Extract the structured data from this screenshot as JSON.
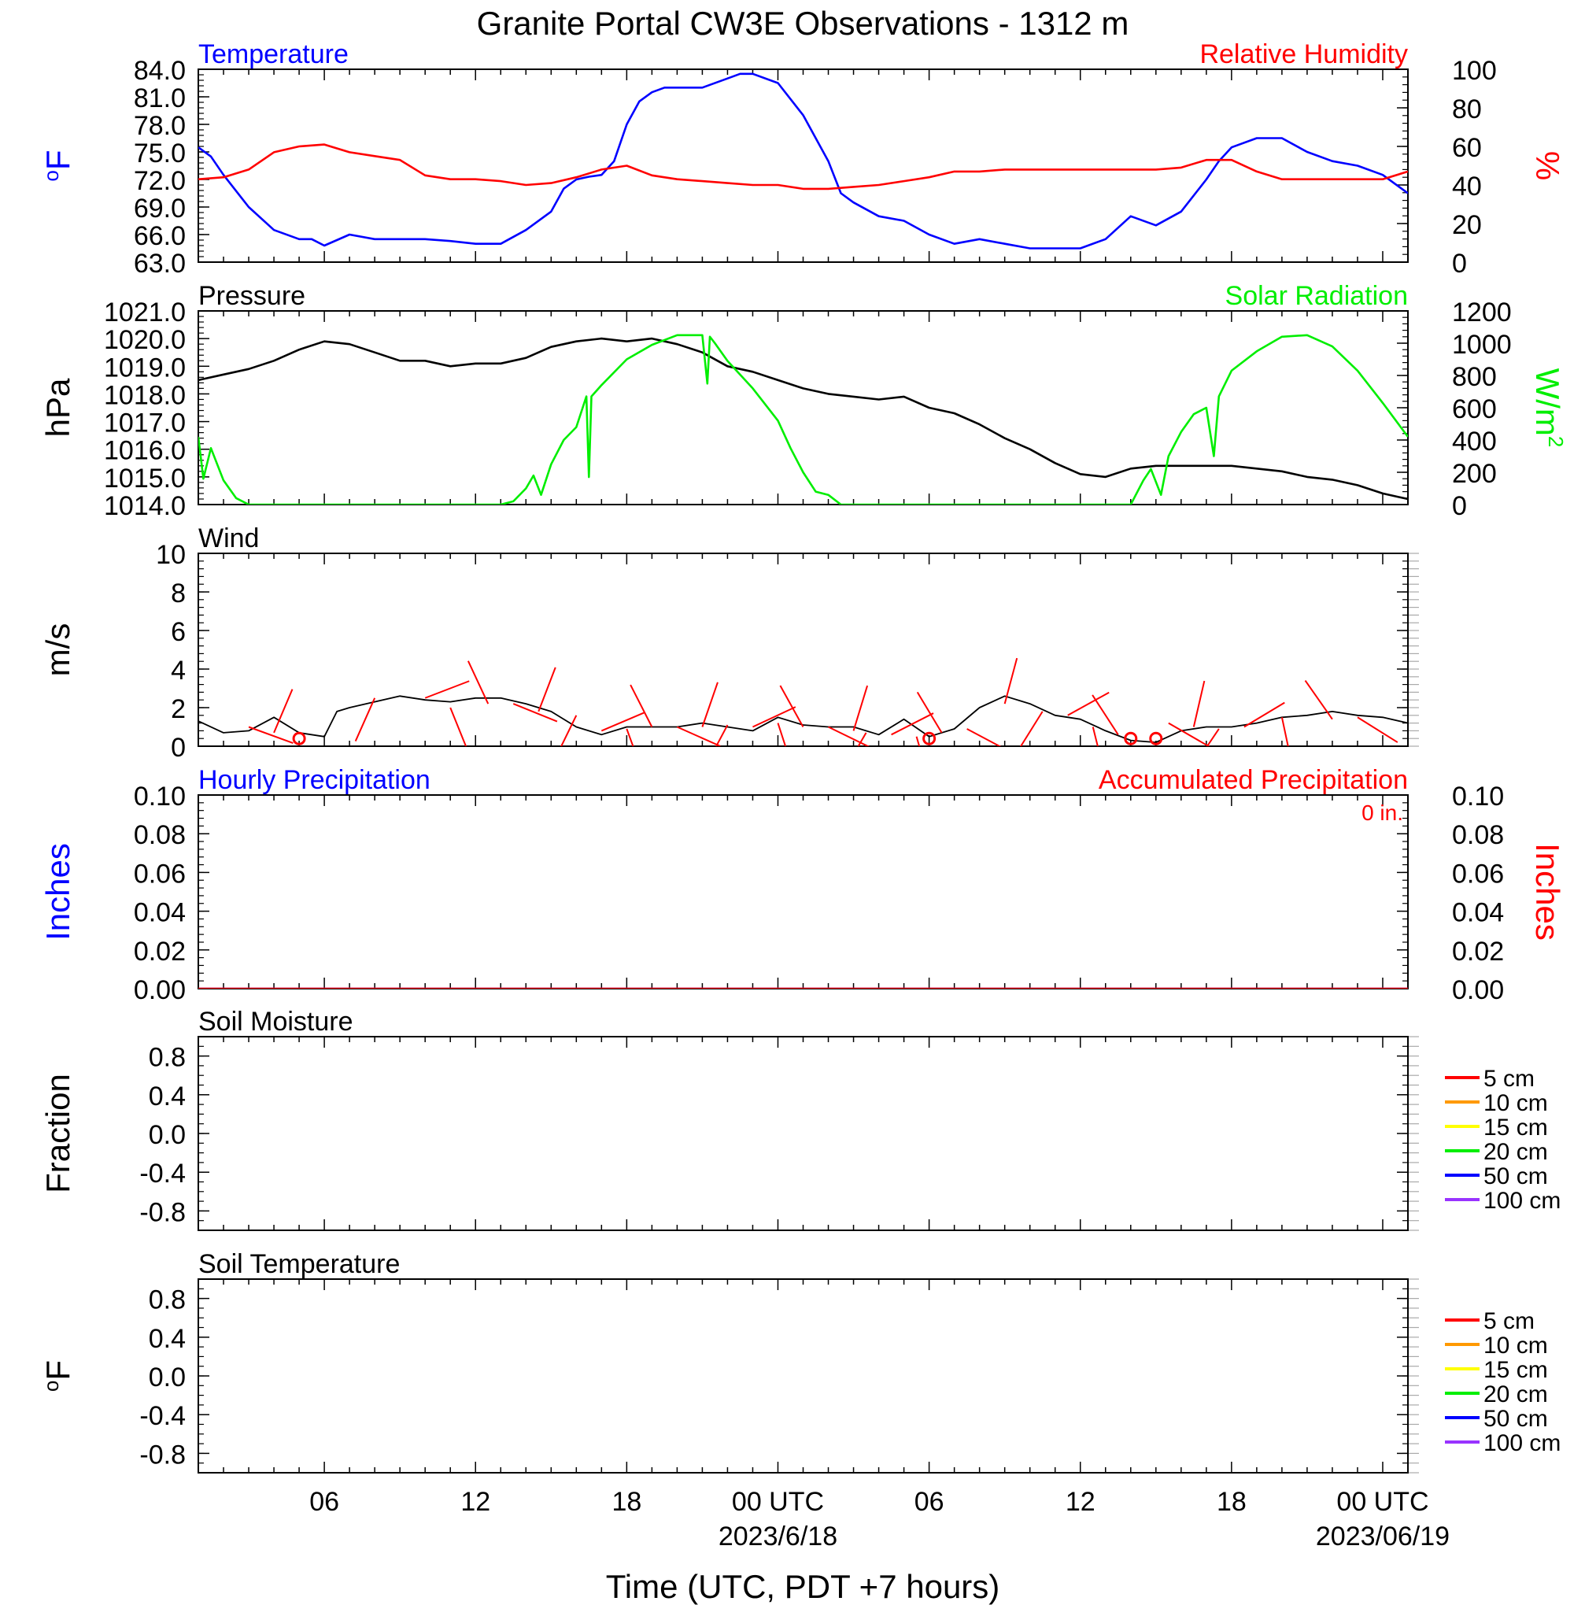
{
  "figure": {
    "title": "Granite Portal CW3E Observations - 1312 m",
    "xaxis_label": "Time (UTC, PDT +7 hours)",
    "x_ticks": [
      {
        "hour": 6,
        "label": "06"
      },
      {
        "hour": 12,
        "label": "12"
      },
      {
        "hour": 18,
        "label": "18"
      },
      {
        "hour": 24,
        "label": "00 UTC"
      },
      {
        "hour": 30,
        "label": "06"
      },
      {
        "hour": 36,
        "label": "12"
      },
      {
        "hour": 42,
        "label": "18"
      },
      {
        "hour": 48,
        "label": "00 UTC"
      }
    ],
    "date_labels": [
      {
        "hour": 24,
        "label": "2023/6/18"
      },
      {
        "hour": 48,
        "label": "2023/06/19"
      }
    ],
    "x_range_hours": [
      1,
      49
    ]
  },
  "chart_data": [
    {
      "type": "line",
      "title_left": "Temperature",
      "title_right": "Relative Humidity",
      "ylabel": "oF",
      "ylabel_right": "%",
      "ylim": [
        63,
        84
      ],
      "ylim_right": [
        0,
        100
      ],
      "yticks": [
        "84.0",
        "81.0",
        "78.0",
        "75.0",
        "72.0",
        "69.0",
        "66.0",
        "63.0"
      ],
      "yticks_right": [
        "100",
        "80",
        "60",
        "40",
        "20",
        "0"
      ],
      "series": [
        {
          "axis": "left",
          "color": "#0000ff",
          "x": [
            1,
            1.5,
            2,
            3,
            4,
            5,
            5.5,
            6,
            7,
            8,
            9,
            10,
            11,
            12,
            13,
            14,
            15,
            15.5,
            16,
            16.5,
            17,
            17.5,
            18,
            18.5,
            19,
            19.5,
            20,
            21,
            22,
            22.5,
            23,
            24,
            25,
            26,
            26.5,
            27,
            28,
            29,
            30,
            31,
            32,
            33,
            34,
            35,
            36,
            37,
            38,
            39,
            40,
            41,
            41.5,
            42,
            43,
            44,
            45,
            46,
            47,
            48,
            49
          ],
          "y": [
            75.5,
            74.5,
            72.5,
            69,
            66.5,
            65.5,
            65.5,
            64.8,
            66,
            65.5,
            65.5,
            65.5,
            65.3,
            65,
            65,
            66.5,
            68.5,
            71,
            72,
            72.3,
            72.5,
            74,
            78,
            80.5,
            81.5,
            82,
            82,
            82,
            83,
            83.5,
            83.5,
            82.5,
            79,
            74,
            70.5,
            69.5,
            68,
            67.5,
            66,
            65,
            65.5,
            65,
            64.5,
            64.5,
            64.5,
            65.5,
            68,
            67,
            68.5,
            72,
            74,
            75.5,
            76.5,
            76.5,
            75,
            74,
            73.5,
            72.5,
            70.5
          ]
        },
        {
          "axis": "right",
          "color": "#ff0000",
          "x": [
            1,
            2,
            3,
            4,
            5,
            6,
            7,
            8,
            9,
            10,
            11,
            12,
            13,
            14,
            15,
            16,
            17,
            18,
            19,
            20,
            21,
            22,
            23,
            24,
            25,
            26,
            27,
            28,
            29,
            30,
            31,
            32,
            33,
            34,
            35,
            36,
            37,
            38,
            39,
            40,
            41,
            42,
            43,
            44,
            45,
            46,
            47,
            48,
            49
          ],
          "y": [
            43,
            44,
            48,
            57,
            60,
            61,
            57,
            55,
            53,
            45,
            43,
            43,
            42,
            40,
            41,
            44,
            48,
            50,
            45,
            43,
            42,
            41,
            40,
            40,
            38,
            38,
            39,
            40,
            42,
            44,
            47,
            47,
            48,
            48,
            48,
            48,
            48,
            48,
            48,
            49,
            53,
            53,
            47,
            43,
            43,
            43,
            43,
            43,
            47
          ]
        }
      ]
    },
    {
      "type": "line",
      "title_left": "Pressure",
      "title_right": "Solar Radiation",
      "ylabel": "hPa",
      "ylabel_right": "W/m2",
      "ylim": [
        1014,
        1021
      ],
      "ylim_right": [
        0,
        1200
      ],
      "yticks": [
        "1021.0",
        "1020.0",
        "1019.0",
        "1018.0",
        "1017.0",
        "1016.0",
        "1015.0",
        "1014.0"
      ],
      "yticks_right": [
        "1200",
        "1000",
        "800",
        "600",
        "400",
        "200",
        "0"
      ],
      "series": [
        {
          "axis": "left",
          "color": "#000000",
          "x": [
            1,
            2,
            3,
            4,
            5,
            6,
            7,
            8,
            9,
            10,
            11,
            12,
            13,
            14,
            15,
            16,
            17,
            18,
            19,
            20,
            21,
            22,
            23,
            24,
            25,
            26,
            27,
            28,
            29,
            30,
            31,
            32,
            33,
            34,
            35,
            36,
            37,
            38,
            39,
            40,
            41,
            42,
            43,
            44,
            45,
            46,
            47,
            48,
            49
          ],
          "y": [
            1018.5,
            1018.7,
            1018.9,
            1019.2,
            1019.6,
            1019.9,
            1019.8,
            1019.5,
            1019.2,
            1019.2,
            1019.0,
            1019.1,
            1019.1,
            1019.3,
            1019.7,
            1019.9,
            1020.0,
            1019.9,
            1020.0,
            1019.8,
            1019.5,
            1019.0,
            1018.8,
            1018.5,
            1018.2,
            1018.0,
            1017.9,
            1017.8,
            1017.9,
            1017.5,
            1017.3,
            1016.9,
            1016.4,
            1016.0,
            1015.5,
            1015.1,
            1015.0,
            1015.3,
            1015.4,
            1015.4,
            1015.4,
            1015.4,
            1015.3,
            1015.2,
            1015.0,
            1014.9,
            1014.7,
            1014.4,
            1014.2
          ]
        },
        {
          "axis": "right",
          "color": "#00ee00",
          "x": [
            1,
            1.2,
            1.5,
            2,
            2.5,
            3,
            4,
            5,
            6,
            7,
            8,
            9,
            10,
            11,
            12,
            13,
            13.5,
            14,
            14.3,
            14.6,
            15,
            15.5,
            16,
            16.4,
            16.5,
            16.6,
            17,
            18,
            19,
            20,
            21,
            21.2,
            21.3,
            21.5,
            22,
            23,
            24,
            24.5,
            25,
            25.5,
            26,
            26.5,
            27,
            28,
            29,
            30,
            31,
            32,
            33,
            34,
            35,
            36,
            37,
            38,
            38.5,
            38.8,
            39.2,
            39.5,
            40,
            40.5,
            41,
            41.3,
            41.5,
            42,
            43,
            44,
            45,
            46,
            47,
            48,
            49
          ],
          "y": [
            420,
            160,
            350,
            150,
            40,
            0,
            0,
            0,
            0,
            0,
            0,
            0,
            0,
            0,
            0,
            0,
            20,
            100,
            180,
            60,
            250,
            400,
            480,
            670,
            170,
            670,
            740,
            900,
            990,
            1050,
            1050,
            750,
            1040,
            1000,
            890,
            720,
            520,
            350,
            200,
            80,
            60,
            0,
            0,
            0,
            0,
            0,
            0,
            0,
            0,
            0,
            0,
            0,
            0,
            0,
            150,
            220,
            60,
            300,
            450,
            560,
            600,
            300,
            670,
            830,
            950,
            1040,
            1050,
            980,
            830,
            630,
            420
          ]
        }
      ]
    },
    {
      "type": "line",
      "title_left": "Wind",
      "ylabel": "m/s",
      "ylim": [
        0,
        10
      ],
      "yticks": [
        "10",
        "8",
        "6",
        "4",
        "2",
        "0"
      ],
      "series": [
        {
          "axis": "left",
          "color": "#000000",
          "x": [
            1,
            2,
            3,
            4,
            5,
            6,
            6.5,
            7,
            8,
            9,
            10,
            11,
            12,
            13,
            14,
            15,
            16,
            17,
            18,
            19,
            20,
            21,
            22,
            23,
            24,
            25,
            26,
            27,
            28,
            29,
            30,
            31,
            32,
            33,
            34,
            35,
            36,
            37,
            38,
            39,
            40,
            41,
            42,
            43,
            44,
            45,
            46,
            47,
            48,
            49
          ],
          "y": [
            1.3,
            0.7,
            0.8,
            1.5,
            0.7,
            0.5,
            1.8,
            2.0,
            2.3,
            2.6,
            2.4,
            2.3,
            2.5,
            2.5,
            2.2,
            1.8,
            1.0,
            0.6,
            1.0,
            1.0,
            1.0,
            1.2,
            1.0,
            0.8,
            1.5,
            1.1,
            1.0,
            1.0,
            0.6,
            1.4,
            0.5,
            0.9,
            2.0,
            2.6,
            2.2,
            1.6,
            1.4,
            0.8,
            0.3,
            0.2,
            0.8,
            1.0,
            1.0,
            1.2,
            1.5,
            1.6,
            1.8,
            1.6,
            1.5,
            1.2
          ]
        },
        {
          "axis": "left",
          "color": "#ff0000",
          "name": "barbs",
          "x": [
            3,
            4,
            8,
            10,
            11,
            12.5,
            13.5,
            14.5,
            16,
            17,
            18,
            19,
            20,
            21,
            22,
            23,
            24,
            25,
            26,
            27,
            27.5,
            28.5,
            29.5,
            30.5,
            31.5,
            33,
            34.5,
            35.5,
            36.5,
            37.5,
            39.5,
            40.5,
            41.5,
            42.5,
            44,
            46,
            47
          ],
          "y": [
            1.0,
            0.7,
            2.5,
            2.5,
            2.0,
            2.2,
            2.2,
            1.8,
            1.6,
            0.8,
            0.9,
            1.0,
            1.0,
            1.0,
            1.1,
            1.0,
            1.2,
            1.0,
            1.0,
            0.8,
            0.7,
            0.6,
            0.5,
            0.7,
            0.9,
            2.2,
            1.8,
            1.6,
            1.0,
            0.6,
            1.2,
            1.0,
            0.9,
            1.0,
            1.5,
            1.4,
            1.5
          ]
        }
      ],
      "calm_markers_x": [
        5,
        30,
        38,
        39
      ]
    },
    {
      "type": "line",
      "title_left": "Hourly Precipitation",
      "title_right": "Accumulated Precipitation",
      "annotation": "0 in.",
      "ylabel": "Inches",
      "ylabel_right": "Inches",
      "ylim": [
        0,
        0.1
      ],
      "ylim_right": [
        0,
        0.1
      ],
      "yticks": [
        "0.10",
        "0.08",
        "0.06",
        "0.04",
        "0.02",
        "0.00"
      ],
      "yticks_right": [
        "0.10",
        "0.08",
        "0.06",
        "0.04",
        "0.02",
        "0.00"
      ],
      "series": [
        {
          "axis": "left",
          "color": "#0000ff",
          "x": [
            1,
            49
          ],
          "y": [
            0,
            0
          ]
        },
        {
          "axis": "right",
          "color": "#ff0000",
          "x": [
            1,
            49
          ],
          "y": [
            0,
            0
          ]
        }
      ]
    },
    {
      "type": "line",
      "title_left": "Soil Moisture",
      "ylabel": "Fraction",
      "ylim": [
        -1,
        1
      ],
      "yticks": [
        "0.8",
        "0.4",
        "0.0",
        "-0.4",
        "-0.8"
      ],
      "legend": [
        {
          "label": "5 cm",
          "color": "#ff0000"
        },
        {
          "label": "10 cm",
          "color": "#ff9900"
        },
        {
          "label": "15 cm",
          "color": "#ffff00"
        },
        {
          "label": "20 cm",
          "color": "#00ee00"
        },
        {
          "label": "50 cm",
          "color": "#0000ff"
        },
        {
          "label": "100 cm",
          "color": "#9933ff"
        }
      ],
      "series": []
    },
    {
      "type": "line",
      "title_left": "Soil Temperature",
      "ylabel": "oF",
      "ylim": [
        -1,
        1
      ],
      "yticks": [
        "0.8",
        "0.4",
        "0.0",
        "-0.4",
        "-0.8"
      ],
      "legend": [
        {
          "label": "5 cm",
          "color": "#ff0000"
        },
        {
          "label": "10 cm",
          "color": "#ff9900"
        },
        {
          "label": "15 cm",
          "color": "#ffff00"
        },
        {
          "label": "20 cm",
          "color": "#00ee00"
        },
        {
          "label": "50 cm",
          "color": "#0000ff"
        },
        {
          "label": "100 cm",
          "color": "#9933ff"
        }
      ],
      "series": []
    }
  ]
}
